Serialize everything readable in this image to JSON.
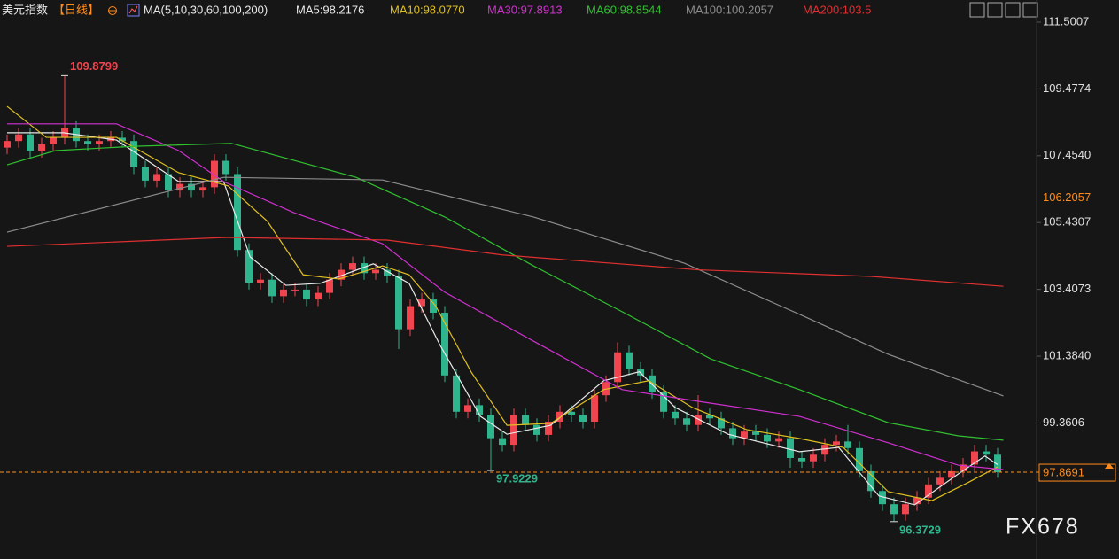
{
  "header": {
    "title": "美元指数",
    "period": "【日线】",
    "ma_params": "MA(5,10,30,60,100,200)"
  },
  "chart_data": {
    "type": "candlestick",
    "up_color": "#f0454f",
    "down_color": "#2fb58d",
    "candles": {
      "open": [
        107.7,
        107.9,
        108.1,
        107.6,
        107.8,
        108.0,
        108.3,
        107.9,
        107.8,
        107.9,
        108.0,
        107.9,
        107.1,
        106.7,
        106.9,
        106.4,
        106.6,
        106.4,
        106.5,
        107.3,
        106.9,
        104.6,
        103.6,
        103.7,
        103.2,
        103.4,
        103.4,
        103.1,
        103.3,
        103.7,
        104.0,
        104.2,
        103.9,
        104.0,
        103.8,
        102.2,
        102.9,
        103.1,
        102.7,
        100.8,
        99.7,
        99.9,
        99.6,
        98.9,
        98.7,
        99.6,
        99.3,
        99.0,
        99.4,
        99.7,
        99.6,
        99.4,
        100.2,
        100.6,
        101.5,
        101.0,
        100.8,
        100.3,
        99.7,
        99.5,
        99.3,
        99.6,
        99.5,
        99.2,
        98.9,
        99.1,
        99.0,
        98.8,
        98.9,
        98.3,
        98.2,
        98.4,
        98.7,
        98.8,
        98.6,
        97.9,
        97.3,
        96.9,
        96.6,
        96.9,
        97.1,
        97.5,
        97.7,
        97.9,
        98.1,
        98.5,
        98.4
      ],
      "high": [
        108.1,
        108.3,
        108.3,
        108.0,
        108.2,
        109.8799,
        108.5,
        108.1,
        108.1,
        108.2,
        108.2,
        108.1,
        107.3,
        107.1,
        107.1,
        106.8,
        106.8,
        106.7,
        107.5,
        107.5,
        107.1,
        104.8,
        103.9,
        103.9,
        103.6,
        103.6,
        103.6,
        103.5,
        103.9,
        104.2,
        104.4,
        104.4,
        104.2,
        104.2,
        104.0,
        103.1,
        103.3,
        103.3,
        102.9,
        101.0,
        100.1,
        100.1,
        99.8,
        99.1,
        99.8,
        99.8,
        99.5,
        99.6,
        99.9,
        99.9,
        99.8,
        100.4,
        100.8,
        101.8,
        101.7,
        101.2,
        101.0,
        100.5,
        99.9,
        99.7,
        100.2,
        99.8,
        99.7,
        99.4,
        99.3,
        99.3,
        99.2,
        99.1,
        99.1,
        98.5,
        98.6,
        98.9,
        99.0,
        99.3,
        98.8,
        98.1,
        97.5,
        97.1,
        97.1,
        97.3,
        97.7,
        97.9,
        98.1,
        98.3,
        98.7,
        98.7,
        98.6
      ],
      "low": [
        107.5,
        107.7,
        107.4,
        107.4,
        107.6,
        107.8,
        107.7,
        107.6,
        107.6,
        107.7,
        107.7,
        106.9,
        106.5,
        106.5,
        106.2,
        106.2,
        106.2,
        106.2,
        106.3,
        106.7,
        104.4,
        103.4,
        103.4,
        103.0,
        103.0,
        103.2,
        102.9,
        102.9,
        103.1,
        103.5,
        103.8,
        103.7,
        103.7,
        103.6,
        101.6,
        102.0,
        102.7,
        102.5,
        100.6,
        99.5,
        99.5,
        99.4,
        97.9229,
        98.5,
        98.5,
        99.1,
        98.8,
        98.8,
        99.2,
        99.4,
        99.2,
        99.2,
        100.0,
        100.4,
        100.8,
        100.6,
        100.1,
        99.5,
        99.3,
        99.1,
        99.1,
        99.3,
        99.0,
        98.7,
        98.7,
        98.8,
        98.6,
        98.6,
        98.0,
        98.0,
        98.0,
        98.2,
        98.5,
        98.4,
        97.7,
        97.1,
        96.7,
        96.3729,
        96.4,
        96.7,
        96.9,
        97.3,
        97.5,
        97.7,
        97.9,
        98.2,
        97.7
      ],
      "close": [
        107.9,
        108.1,
        107.6,
        107.8,
        108.0,
        108.3,
        107.9,
        107.8,
        107.9,
        108.0,
        107.9,
        107.1,
        106.7,
        106.9,
        106.4,
        106.6,
        106.4,
        106.5,
        107.3,
        106.9,
        104.6,
        103.6,
        103.7,
        103.2,
        103.4,
        103.4,
        103.1,
        103.3,
        103.7,
        104.0,
        104.2,
        103.9,
        104.0,
        103.8,
        102.2,
        102.9,
        103.1,
        102.7,
        100.8,
        99.7,
        99.9,
        99.6,
        98.9,
        98.7,
        99.6,
        99.3,
        99.0,
        99.4,
        99.7,
        99.6,
        99.4,
        100.2,
        100.6,
        101.5,
        101.0,
        100.8,
        100.3,
        99.7,
        99.5,
        99.3,
        99.6,
        99.5,
        99.2,
        98.9,
        99.1,
        99.0,
        98.8,
        98.9,
        98.3,
        98.2,
        98.4,
        98.7,
        98.8,
        98.6,
        97.9,
        97.3,
        96.9,
        96.6,
        96.9,
        97.1,
        97.5,
        97.7,
        97.9,
        98.1,
        98.5,
        98.4,
        97.87
      ]
    },
    "series": [
      {
        "name": "MA5:98.2176",
        "color": "#e8e8e8",
        "x": [
          0,
          4.9,
          9.5,
          14.9,
          18.8,
          21.1,
          24.2,
          27.2,
          31.8,
          34.9,
          37.6,
          41.1,
          43.4,
          47.2,
          51.8,
          54.9,
          58,
          62.6,
          68.8,
          72.2,
          75.7,
          78.8,
          82.6,
          84.9,
          86
        ],
        "values": [
          108.15,
          108.15,
          107.93,
          106.67,
          106.67,
          104.39,
          103.53,
          103.59,
          104.18,
          103.59,
          101.71,
          99.56,
          99.02,
          99.29,
          100.64,
          100.91,
          99.83,
          99.02,
          98.49,
          98.62,
          97.15,
          96.88,
          97.82,
          98.36,
          98.1
        ]
      },
      {
        "name": "MA10:98.0770",
        "color": "#e0c020",
        "x": [
          0,
          3.4,
          9.5,
          14.9,
          19.2,
          22.6,
          25.7,
          28.8,
          32.6,
          34.9,
          37.2,
          40.3,
          43.4,
          47.2,
          51.8,
          55.7,
          59.5,
          64.2,
          68.8,
          72.6,
          76.5,
          80.3,
          83.4,
          86
        ],
        "values": [
          108.95,
          108.01,
          108.01,
          106.94,
          106.54,
          105.47,
          103.85,
          103.72,
          104.12,
          103.85,
          102.91,
          100.9,
          99.29,
          99.35,
          100.37,
          100.64,
          99.83,
          99.16,
          98.89,
          98.62,
          97.28,
          97.01,
          97.55,
          98.03
        ]
      },
      {
        "name": "MA30:97.8913",
        "color": "#d030d0",
        "x": [
          0,
          9.5,
          14.9,
          18.8,
          24.9,
          32.6,
          38,
          45.7,
          53.4,
          61.1,
          68.8,
          76.5,
          82.6,
          86.5
        ],
        "values": [
          108.42,
          108.42,
          107.61,
          106.67,
          105.73,
          104.79,
          103.32,
          101.84,
          100.37,
          99.96,
          99.56,
          98.76,
          98.08,
          97.95
        ]
      },
      {
        "name": "MA60:98.8544",
        "color": "#30c030",
        "x": [
          0,
          4.2,
          11.1,
          19.5,
          30.3,
          38,
          45.7,
          53.4,
          61.1,
          68.8,
          76.5,
          82.6,
          86.5
        ],
        "values": [
          107.18,
          107.61,
          107.74,
          107.83,
          106.8,
          105.6,
          104.12,
          102.73,
          101.3,
          100.37,
          99.37,
          98.97,
          98.84
        ]
      },
      {
        "name": "MA100:100.2057",
        "color": "#8c8c8c",
        "x": [
          0,
          18.8,
          32.6,
          45.7,
          58.8,
          68.8,
          76.5,
          86.5
        ],
        "values": [
          105.14,
          106.8,
          106.72,
          105.6,
          104.2,
          102.65,
          101.44,
          100.18
        ]
      },
      {
        "name": "MA200:103.5",
        "color": "#e03030",
        "x": [
          0,
          19,
          33,
          43,
          60,
          75,
          86.5
        ],
        "values": [
          104.71,
          104.98,
          104.9,
          104.45,
          104.0,
          103.8,
          103.5
        ]
      }
    ],
    "ylim": [
      95.241,
      112.171
    ],
    "yticks": [
      111.5007,
      109.4774,
      {
        "value": 107.454,
        "label": "107.4540"
      },
      105.4307,
      103.4073,
      {
        "value": 101.384,
        "label": "101.3840"
      },
      99.3606
    ],
    "annotations": [
      {
        "value": 109.8799,
        "x": 5,
        "color": "#f0454f"
      },
      {
        "value": 97.9229,
        "x": 42,
        "color": "#2fb58d"
      },
      {
        "value": 96.3729,
        "x": 77,
        "color": "#2fb58d"
      }
    ],
    "last_price": {
      "value": 97.8691,
      "color": "#ff8c1a"
    },
    "marker_price": 106.2057,
    "watermark": "FX678"
  }
}
